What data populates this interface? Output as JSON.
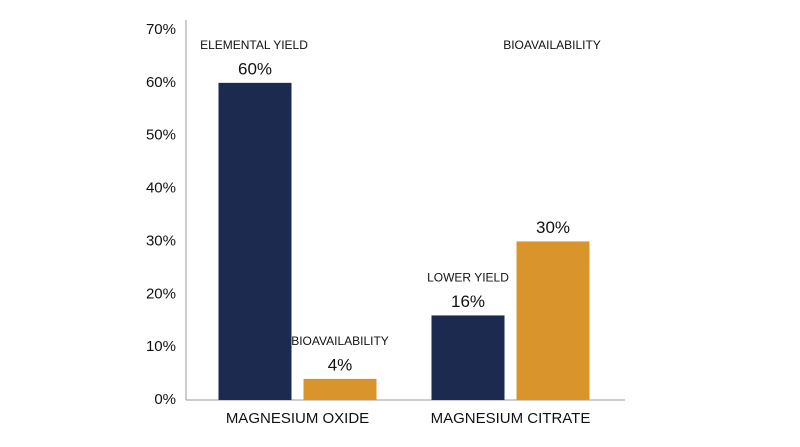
{
  "chart_data": {
    "type": "bar",
    "categories": [
      "MAGNESIUM OXIDE",
      "MAGNESIUM CITRATE"
    ],
    "series": [
      {
        "color": "#1c2a4f",
        "values": [
          60,
          16
        ],
        "value_labels": [
          "60%",
          "16%"
        ],
        "point_labels": [
          "ELEMENTAL YIELD",
          "LOWER YIELD"
        ]
      },
      {
        "color": "#d9952b",
        "values": [
          4,
          30
        ],
        "value_labels": [
          "4%",
          "30%"
        ],
        "point_labels": [
          "BIOAVAILABILITY",
          "BIOAVAILABILITY"
        ]
      }
    ],
    "ylim": [
      0,
      70
    ],
    "yticks": [
      {
        "value": 0,
        "label": "0%"
      },
      {
        "value": 10,
        "label": "10%"
      },
      {
        "value": 20,
        "label": "20%"
      },
      {
        "value": 30,
        "label": "30%"
      },
      {
        "value": 40,
        "label": "40%"
      },
      {
        "value": 50,
        "label": "50%"
      },
      {
        "value": 60,
        "label": "60%"
      },
      {
        "value": 70,
        "label": "70%"
      }
    ],
    "grid": false
  }
}
